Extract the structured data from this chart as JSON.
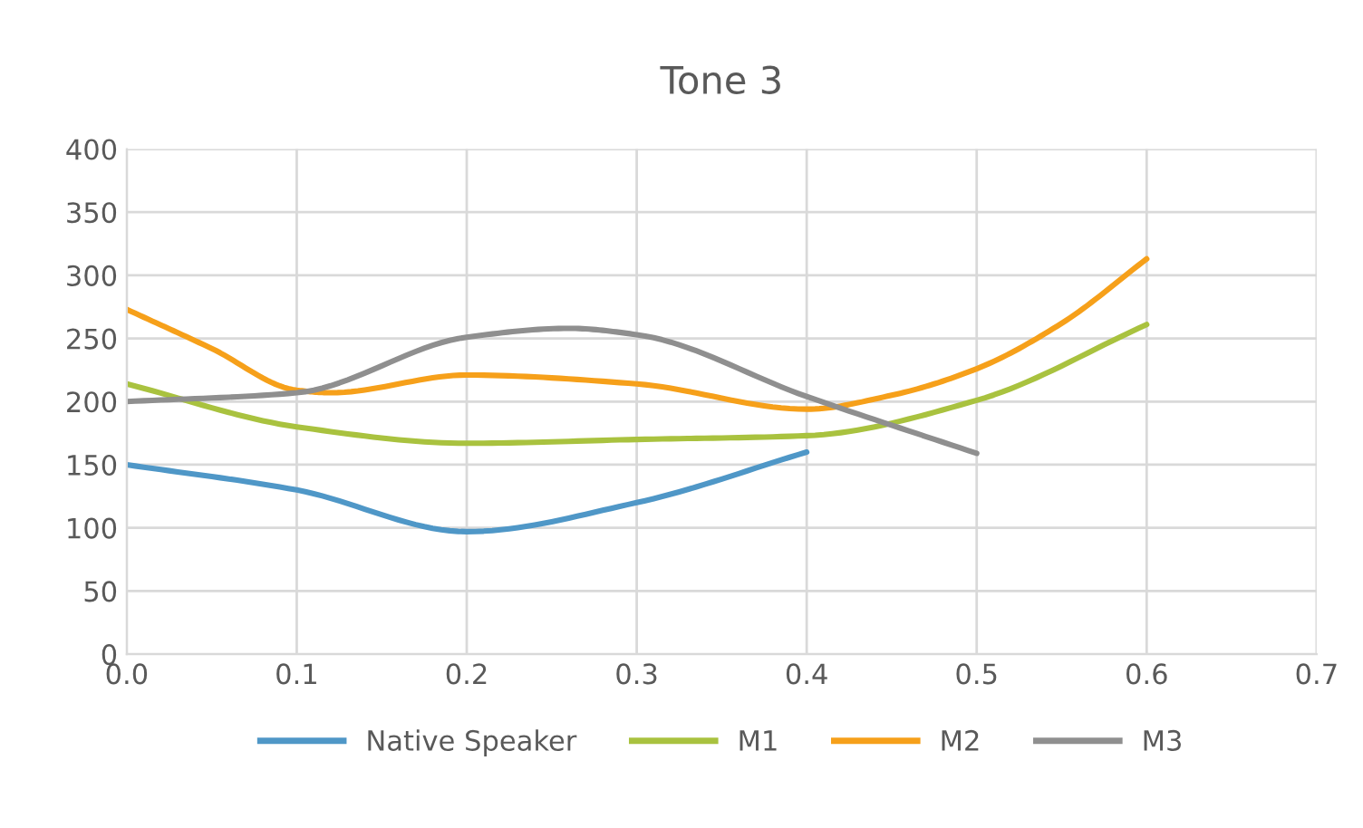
{
  "chart_data": {
    "type": "line",
    "title": "Tone 3",
    "x": [
      0,
      0.1,
      0.2,
      0.3,
      0.4,
      0.5,
      0.6
    ],
    "series": [
      {
        "name": "Native Speaker",
        "color": "#4f97c7",
        "x": [
          0,
          0.1,
          0.2,
          0.3,
          0.4
        ],
        "values": [
          150,
          130,
          97,
          120,
          160
        ]
      },
      {
        "name": "M1",
        "color": "#a9c23f",
        "values": [
          214,
          180,
          167,
          170,
          173,
          201,
          261
        ]
      },
      {
        "name": "M2",
        "color": "#f6a01a",
        "x": [
          0,
          0.05,
          0.1,
          0.12,
          0.2,
          0.3,
          0.4,
          0.45,
          0.5,
          0.55,
          0.6
        ],
        "values": [
          273,
          242,
          209,
          207,
          221,
          214,
          194,
          205,
          226,
          262,
          313
        ]
      },
      {
        "name": "M3",
        "color": "#8f8f8f",
        "x": [
          0,
          0.1,
          0.2,
          0.26,
          0.3,
          0.4,
          0.5
        ],
        "values": [
          200,
          207,
          251,
          258,
          253,
          204,
          159
        ]
      }
    ],
    "xlim": [
      0,
      0.7
    ],
    "xticks": [
      {
        "value": 0,
        "label": "0.0"
      },
      0.1,
      0.2,
      0.3,
      0.4,
      0.5,
      0.6,
      0.7
    ],
    "ylim": [
      0,
      400
    ],
    "yticks": [
      0,
      50,
      100,
      150,
      200,
      250,
      300,
      350,
      400
    ],
    "grid": true,
    "legend": "bottom",
    "marker": "none",
    "line_style": "solid"
  }
}
